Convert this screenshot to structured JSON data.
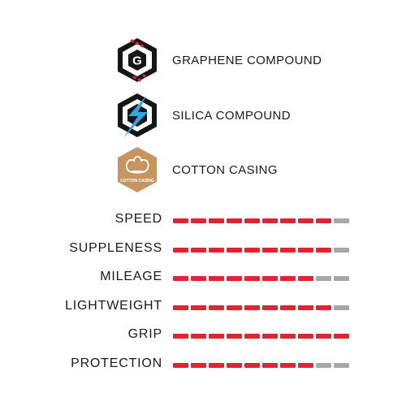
{
  "features": [
    {
      "label": "GRAPHENE COMPOUND",
      "icon": "graphene-g-hexagon-icon",
      "badge_letter": "G"
    },
    {
      "label": "SILICA COMPOUND",
      "icon": "silica-lightning-hexagon-icon"
    },
    {
      "label": "COTTON CASING",
      "icon": "cotton-casing-hexagon-icon",
      "badge_text": "COTTON CASING"
    }
  ],
  "rating_scale_max": 10,
  "ratings": [
    {
      "label": "SPEED",
      "value": 9
    },
    {
      "label": "SUPPLENESS",
      "value": 9
    },
    {
      "label": "MILEAGE",
      "value": 8
    },
    {
      "label": "LIGHTWEIGHT",
      "value": 9
    },
    {
      "label": "GRIP",
      "value": 10
    },
    {
      "label": "PROTECTION",
      "value": 8
    }
  ],
  "colors": {
    "filled": "#e42332",
    "empty": "#a7a7a7",
    "text": "#1a1a1a",
    "cotton": "#c7965f"
  }
}
